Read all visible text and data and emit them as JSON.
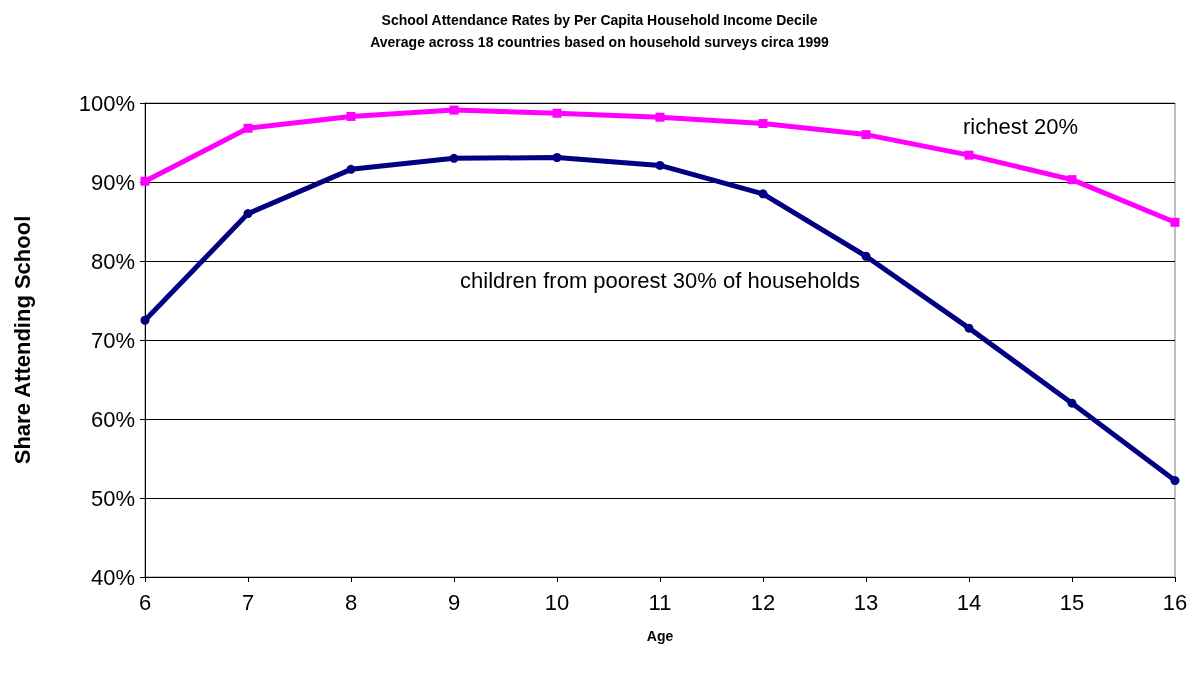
{
  "chart_data": {
    "type": "line",
    "title": "School Attendance Rates by Per Capita Household Income Decile",
    "subtitle": "Average across 18 countries based on household surveys circa 1999",
    "xlabel": "Age",
    "ylabel": "Share Attending School",
    "x": [
      6,
      7,
      8,
      9,
      10,
      11,
      12,
      13,
      14,
      15,
      16
    ],
    "series": [
      {
        "name": "richest 20%",
        "color": "#ff00ff",
        "marker": "square",
        "values": [
          90.1,
          96.8,
          98.3,
          99.1,
          98.7,
          98.2,
          97.4,
          96.0,
          93.4,
          90.3,
          84.9
        ]
      },
      {
        "name": "children from poorest 30% of households",
        "color": "#000080",
        "marker": "circle",
        "values": [
          72.5,
          86.0,
          91.6,
          93.0,
          93.1,
          92.1,
          88.5,
          80.6,
          71.5,
          62.0,
          52.2
        ]
      }
    ],
    "xlim": [
      6,
      16
    ],
    "xticks": [
      6,
      7,
      8,
      9,
      10,
      11,
      12,
      13,
      14,
      15,
      16
    ],
    "ylim": [
      40,
      100
    ],
    "yticks": [
      {
        "value": 40,
        "label": "40%"
      },
      {
        "value": 50,
        "label": "50%"
      },
      {
        "value": 60,
        "label": "60%"
      },
      {
        "value": 70,
        "label": "70%"
      },
      {
        "value": 80,
        "label": "80%"
      },
      {
        "value": 90,
        "label": "90%"
      },
      {
        "value": 100,
        "label": "100%"
      }
    ],
    "grid": "y",
    "legend": false,
    "line_style": "solid"
  }
}
